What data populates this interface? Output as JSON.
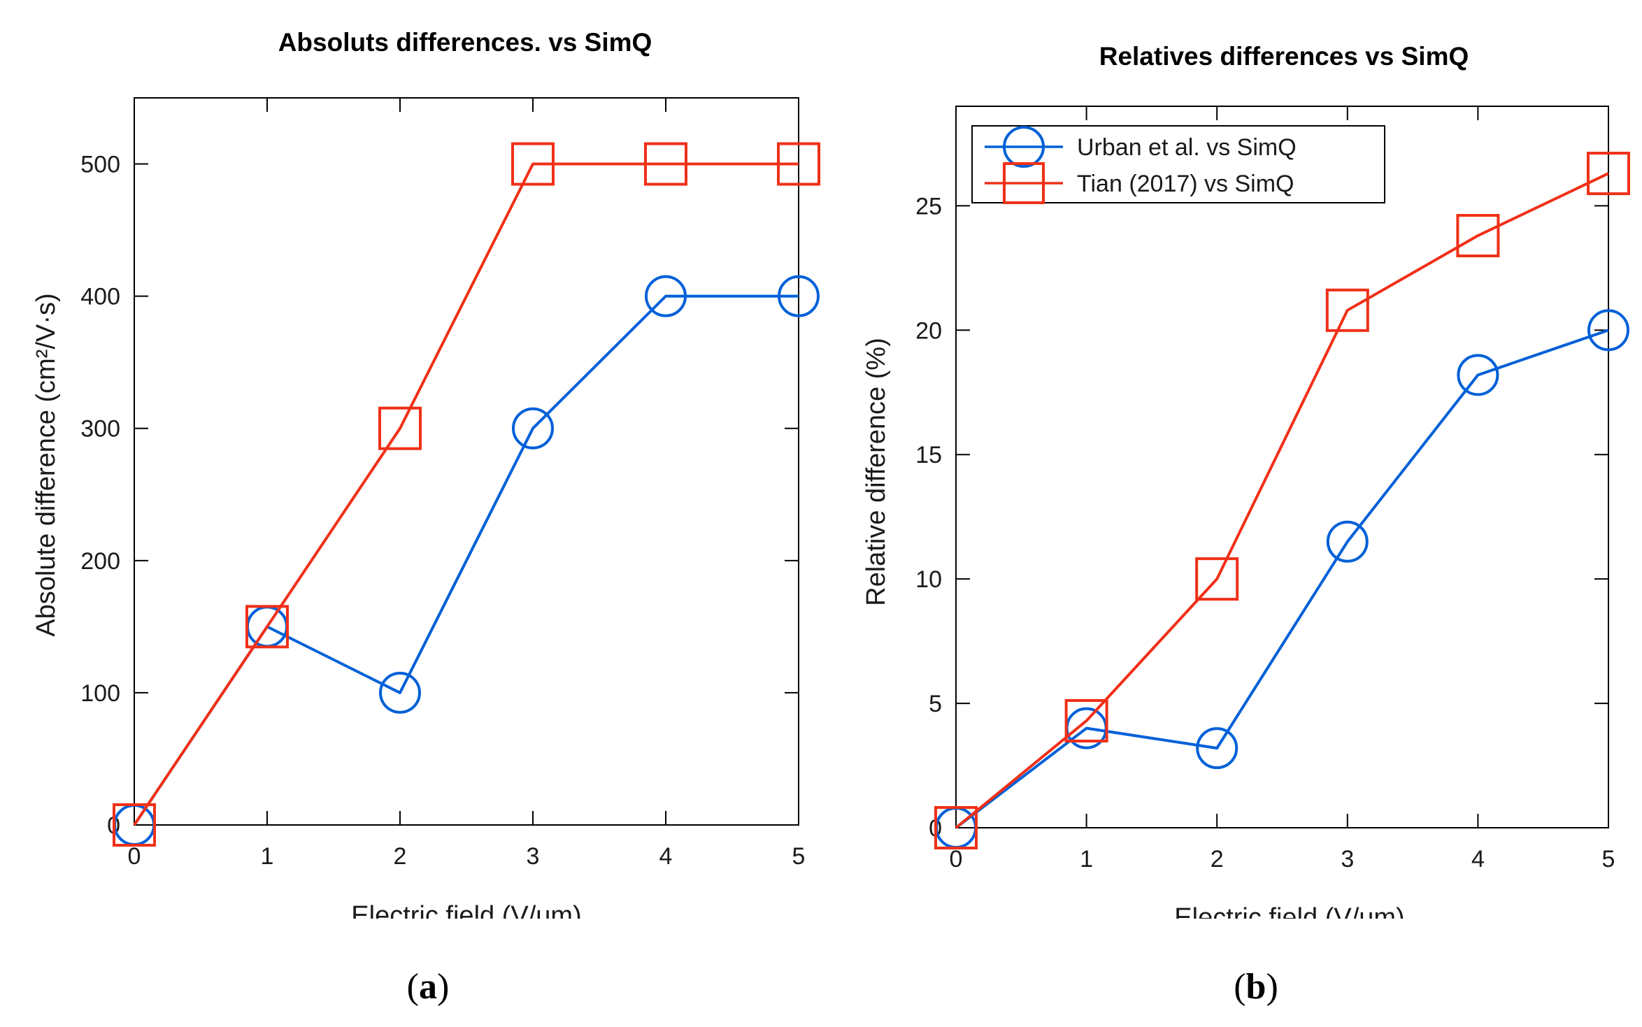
{
  "colors": {
    "urban": "#0060d8",
    "tian": "#f03018",
    "axis": "#000000"
  },
  "panel_labels": {
    "a": "a",
    "b": "b",
    "open": "(",
    "close": ")"
  },
  "chart_data": [
    {
      "type": "line",
      "title": "Absoluts differences. vs SimQ",
      "xlabel": "Electric field (V/um)",
      "ylabel": "Absolute difference (cm²/V·s)",
      "xlim": [
        0,
        5
      ],
      "ylim": [
        0,
        550
      ],
      "x_ticks": [
        0,
        1,
        2,
        3,
        4,
        5
      ],
      "y_ticks": [
        0,
        100,
        200,
        300,
        400,
        500
      ],
      "grid": false,
      "legend": "none",
      "series": [
        {
          "key": "urban",
          "marker": "circle",
          "x": [
            0,
            1,
            2,
            3,
            4,
            5
          ],
          "values": [
            0,
            150,
            100,
            300,
            400,
            400
          ]
        },
        {
          "key": "tian",
          "marker": "square",
          "x": [
            0,
            1,
            2,
            3,
            4,
            5
          ],
          "values": [
            0,
            150,
            300,
            500,
            500,
            500
          ]
        }
      ]
    },
    {
      "type": "line",
      "title": "Relatives differences vs SimQ",
      "xlabel": "Electric field (V/um)",
      "ylabel": "Relative difference (%)",
      "xlim": [
        0,
        5
      ],
      "ylim": [
        0,
        29
      ],
      "x_ticks": [
        0,
        1,
        2,
        3,
        4,
        5
      ],
      "y_ticks": [
        0,
        5,
        10,
        15,
        20,
        25
      ],
      "grid": false,
      "legend": "top-left",
      "series": [
        {
          "key": "urban",
          "name": "Urban et al. vs SimQ",
          "marker": "circle",
          "x": [
            0,
            1,
            2,
            3,
            4,
            5
          ],
          "values": [
            0,
            4,
            3.2,
            11.5,
            18.2,
            20
          ]
        },
        {
          "key": "tian",
          "name": "Tian (2017) vs SimQ",
          "marker": "square",
          "x": [
            0,
            1,
            2,
            3,
            4,
            5
          ],
          "values": [
            0,
            4.3,
            10,
            20.8,
            23.8,
            26.3
          ]
        }
      ]
    }
  ]
}
